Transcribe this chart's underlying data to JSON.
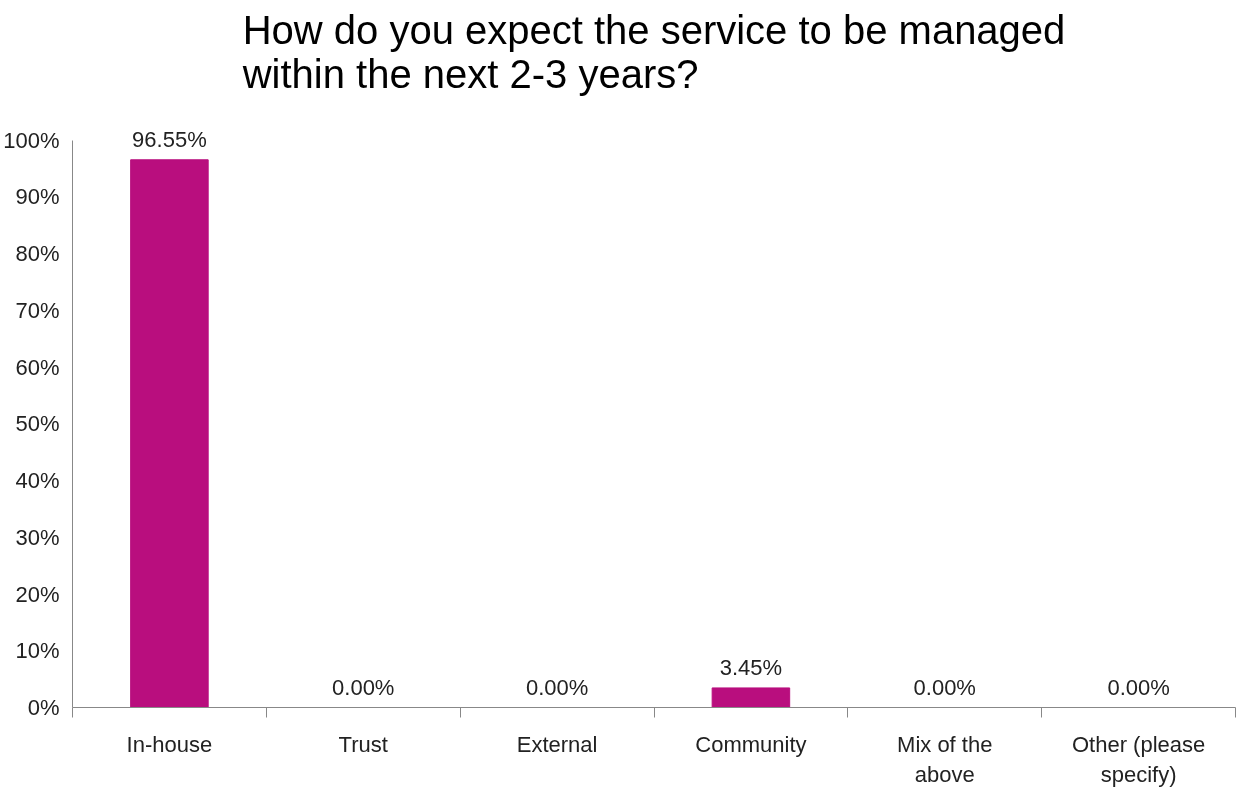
{
  "chart_data": {
    "type": "bar",
    "title": "How do you expect the service to be managed within the next 2-3 years?",
    "categories": [
      "In-house",
      "Trust",
      "External",
      "Community",
      "Mix of the above",
      "Other (please specify)"
    ],
    "values": [
      96.55,
      0,
      0,
      3.45,
      0,
      0
    ],
    "value_labels": [
      "96.55%",
      "0.00%",
      "0.00%",
      "3.45%",
      "0.00%",
      "0.00%"
    ],
    "color": "#b90e7e",
    "ylim": [
      0,
      100
    ],
    "yticks": [
      {
        "value": 0,
        "label": "0%"
      },
      {
        "value": 10,
        "label": "10%"
      },
      {
        "value": 20,
        "label": "20%"
      },
      {
        "value": 30,
        "label": "30%"
      },
      {
        "value": 40,
        "label": "40%"
      },
      {
        "value": 50,
        "label": "50%"
      },
      {
        "value": 60,
        "label": "60%"
      },
      {
        "value": 70,
        "label": "70%"
      },
      {
        "value": 80,
        "label": "80%"
      },
      {
        "value": 90,
        "label": "90%"
      },
      {
        "value": 100,
        "label": "100%"
      }
    ],
    "grid": false
  }
}
